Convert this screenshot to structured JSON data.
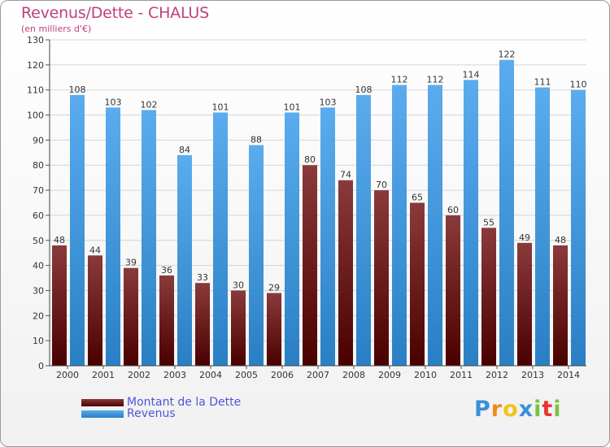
{
  "header": {
    "title": "Revenus/Dette - CHALUS",
    "subtitle": "(en milliers d'€)"
  },
  "legend": {
    "debt_label": "Montant de la Dette",
    "revenue_label": "Revenus"
  },
  "logo": {
    "letters": [
      "P",
      "r",
      "o",
      "x",
      "i",
      "t",
      "i"
    ],
    "colors": [
      "#3a8fd8",
      "#f08a1c",
      "#f0c419",
      "#3a8fd8",
      "#7cc242",
      "#e8342e",
      "#7cc242"
    ]
  },
  "colors": {
    "debt_top": "#8a3a3a",
    "debt_bottom": "#4a0000",
    "revenue_top": "#5aacee",
    "revenue_bottom": "#2a7fc4"
  },
  "chart_data": {
    "type": "bar",
    "title": "Revenus/Dette - CHALUS",
    "subtitle": "(en milliers d'€)",
    "xlabel": "",
    "ylabel": "",
    "ylim": [
      0,
      130
    ],
    "yticks": [
      0,
      10,
      20,
      30,
      40,
      50,
      60,
      70,
      80,
      90,
      100,
      110,
      120,
      130
    ],
    "grid": true,
    "legend_position": "bottom-left",
    "categories": [
      "2000",
      "2001",
      "2002",
      "2003",
      "2004",
      "2005",
      "2006",
      "2007",
      "2008",
      "2009",
      "2010",
      "2011",
      "2012",
      "2013",
      "2014"
    ],
    "series": [
      {
        "name": "Montant de la Dette",
        "values": [
          48,
          44,
          39,
          36,
          33,
          30,
          29,
          80,
          74,
          70,
          65,
          60,
          55,
          49,
          48
        ]
      },
      {
        "name": "Revenus",
        "values": [
          108,
          103,
          102,
          84,
          101,
          88,
          101,
          103,
          108,
          112,
          112,
          114,
          122,
          111,
          110
        ]
      }
    ]
  }
}
